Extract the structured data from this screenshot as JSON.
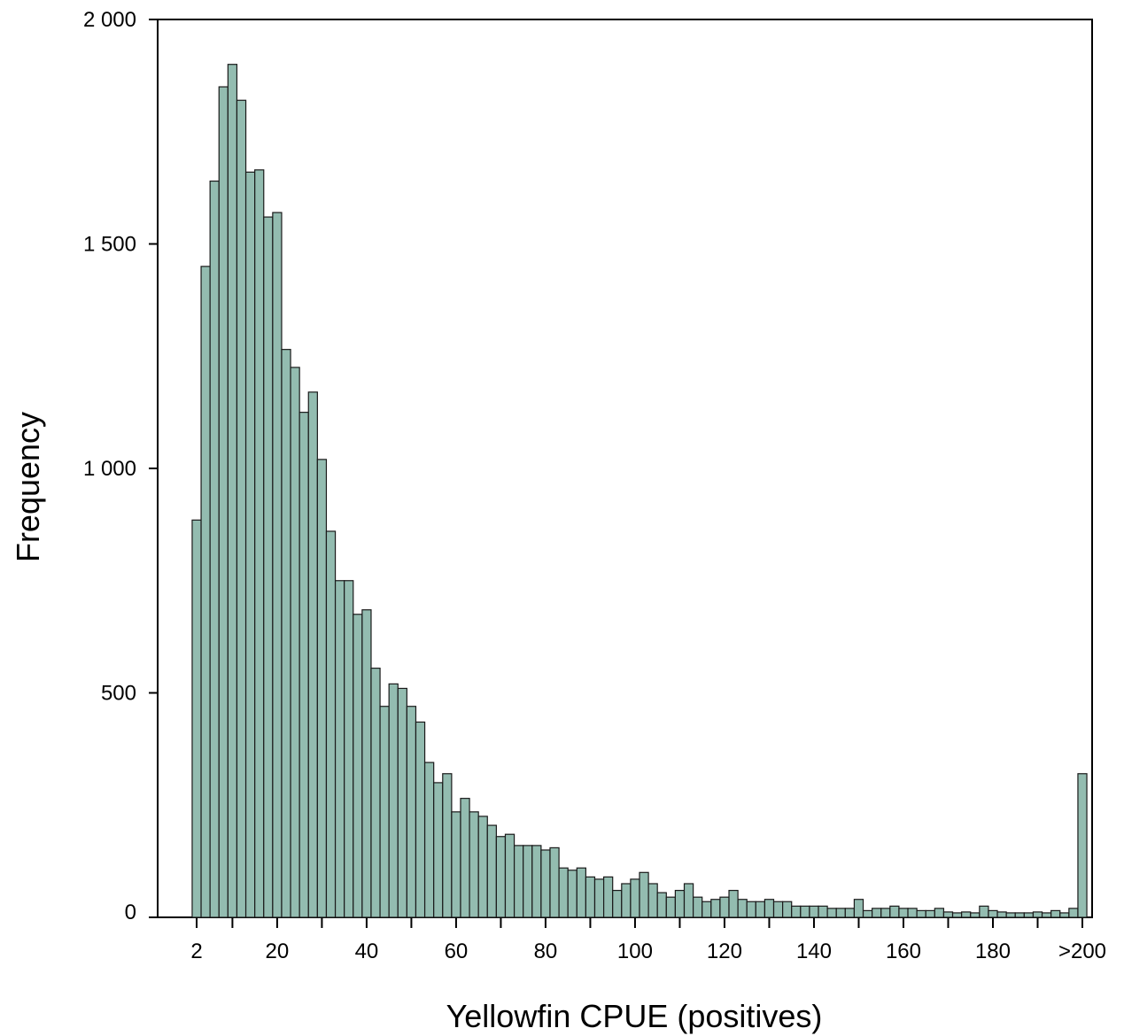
{
  "chart_data": {
    "type": "bar",
    "title": "",
    "xlabel": "Yellowfin CPUE (positives)",
    "ylabel": "Frequency",
    "ylim": [
      0,
      2000
    ],
    "yticks": [
      "0",
      "500",
      "1 000",
      "1 500",
      "2 000"
    ],
    "yticks_values": [
      0,
      500,
      1000,
      1500,
      2000
    ],
    "xticks": [
      "2",
      "20",
      "40",
      "60",
      "80",
      "100",
      "120",
      "140",
      "160",
      "180",
      ">200"
    ],
    "xticks_values": [
      2,
      20,
      40,
      60,
      80,
      100,
      120,
      140,
      160,
      180,
      200
    ],
    "grid": false,
    "bar_color": "#93bcb0",
    "bar_edge_color": "#1a1a1a",
    "bins": [
      2,
      4,
      6,
      8,
      10,
      12,
      14,
      16,
      18,
      20,
      22,
      24,
      26,
      28,
      30,
      32,
      34,
      36,
      38,
      40,
      42,
      44,
      46,
      48,
      50,
      52,
      54,
      56,
      58,
      60,
      62,
      64,
      66,
      68,
      70,
      72,
      74,
      76,
      78,
      80,
      82,
      84,
      86,
      88,
      90,
      92,
      94,
      96,
      98,
      100,
      102,
      104,
      106,
      108,
      110,
      112,
      114,
      116,
      118,
      120,
      122,
      124,
      126,
      128,
      130,
      132,
      134,
      136,
      138,
      140,
      142,
      144,
      146,
      148,
      150,
      152,
      154,
      156,
      158,
      160,
      162,
      164,
      166,
      168,
      170,
      172,
      174,
      176,
      178,
      180,
      182,
      184,
      186,
      188,
      190,
      192,
      194,
      196,
      198,
      200
    ],
    "values": [
      885,
      1450,
      1640,
      1850,
      1900,
      1820,
      1660,
      1665,
      1560,
      1570,
      1265,
      1225,
      1125,
      1170,
      1020,
      860,
      750,
      750,
      675,
      685,
      555,
      470,
      520,
      510,
      470,
      435,
      345,
      300,
      320,
      235,
      265,
      235,
      225,
      205,
      180,
      185,
      160,
      160,
      160,
      150,
      155,
      110,
      105,
      110,
      90,
      85,
      90,
      60,
      75,
      85,
      100,
      75,
      55,
      45,
      60,
      75,
      45,
      35,
      40,
      45,
      60,
      40,
      35,
      35,
      40,
      35,
      35,
      25,
      25,
      25,
      25,
      20,
      20,
      20,
      40,
      15,
      20,
      20,
      25,
      20,
      20,
      15,
      15,
      20,
      12,
      10,
      12,
      10,
      25,
      15,
      12,
      10,
      10,
      10,
      12,
      10,
      15,
      10,
      20,
      320
    ]
  }
}
